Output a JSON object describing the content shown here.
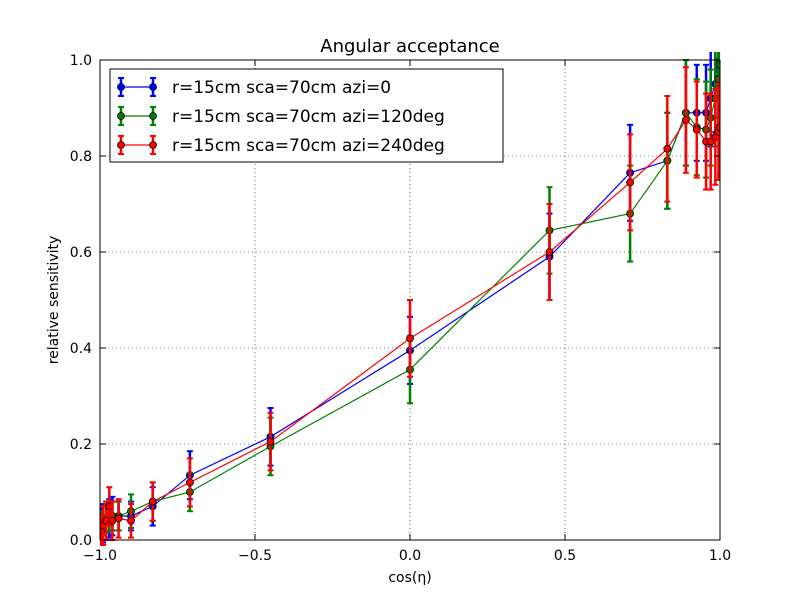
{
  "chart_data": {
    "type": "line",
    "title": "Angular acceptance",
    "xlabel": "cos(η)",
    "ylabel": "relative sensitivity",
    "xlim": [
      -1.0,
      1.0
    ],
    "ylim": [
      0.0,
      1.0
    ],
    "xticks": [
      -1.0,
      -0.5,
      0.0,
      0.5,
      1.0
    ],
    "xtick_labels": [
      "−1.0",
      "−0.5",
      "0.0",
      "0.5",
      "1.0"
    ],
    "yticks": [
      0.0,
      0.2,
      0.4,
      0.6,
      0.8,
      1.0
    ],
    "ytick_labels": [
      "0.0",
      "0.2",
      "0.4",
      "0.6",
      "0.8",
      "1.0"
    ],
    "grid": true,
    "legend_position": "top-left",
    "series": [
      {
        "name": "r=15cm sca=70cm azi=0",
        "color": "#0000ff",
        "x": [
          -1.0,
          -0.995,
          -0.99,
          -0.98,
          -0.97,
          -0.96,
          -0.94,
          -0.9,
          -0.83,
          -0.71,
          -0.45,
          0.0,
          0.45,
          0.71,
          0.83,
          0.89,
          0.925,
          0.955,
          0.97,
          0.985,
          0.995,
          1.0
        ],
        "y": [
          0.02,
          0.03,
          0.035,
          0.04,
          0.045,
          0.05,
          0.05,
          0.05,
          0.07,
          0.135,
          0.215,
          0.395,
          0.59,
          0.765,
          0.79,
          0.89,
          0.89,
          0.89,
          0.92,
          0.95,
          0.98,
          1.0
        ],
        "yerr": [
          0.03,
          0.04,
          0.04,
          0.04,
          0.04,
          0.04,
          0.03,
          0.03,
          0.04,
          0.05,
          0.06,
          0.07,
          0.09,
          0.1,
          0.1,
          0.11,
          0.1,
          0.1,
          0.1,
          0.1,
          0.1,
          0.1
        ]
      },
      {
        "name": "r=15cm sca=70cm azi=120deg",
        "color": "#008000",
        "x": [
          -1.0,
          -0.995,
          -0.99,
          -0.98,
          -0.97,
          -0.96,
          -0.94,
          -0.9,
          -0.83,
          -0.71,
          -0.45,
          0.0,
          0.45,
          0.71,
          0.83,
          0.89,
          0.925,
          0.955,
          0.97,
          0.985,
          0.995,
          1.0
        ],
        "y": [
          0.025,
          0.03,
          0.04,
          0.045,
          0.05,
          0.05,
          0.05,
          0.06,
          0.08,
          0.1,
          0.195,
          0.355,
          0.645,
          0.68,
          0.79,
          0.89,
          0.86,
          0.855,
          0.88,
          0.92,
          0.96,
          0.99
        ],
        "yerr": [
          0.03,
          0.03,
          0.03,
          0.03,
          0.03,
          0.03,
          0.03,
          0.035,
          0.04,
          0.04,
          0.06,
          0.07,
          0.09,
          0.1,
          0.1,
          0.11,
          0.1,
          0.1,
          0.1,
          0.1,
          0.1,
          0.1
        ]
      },
      {
        "name": "r=15cm sca=70cm azi=240deg",
        "color": "#ff0000",
        "x": [
          -1.0,
          -0.995,
          -0.99,
          -0.98,
          -0.97,
          -0.96,
          -0.94,
          -0.9,
          -0.83,
          -0.71,
          -0.45,
          0.0,
          0.45,
          0.71,
          0.83,
          0.89,
          0.925,
          0.955,
          0.97,
          0.985,
          0.995,
          1.0
        ],
        "y": [
          0.015,
          0.02,
          0.03,
          0.04,
          0.07,
          0.04,
          0.045,
          0.04,
          0.08,
          0.12,
          0.205,
          0.42,
          0.6,
          0.745,
          0.815,
          0.875,
          0.855,
          0.83,
          0.83,
          0.84,
          0.85,
          0.86
        ],
        "yerr": [
          0.03,
          0.03,
          0.04,
          0.04,
          0.04,
          0.04,
          0.04,
          0.035,
          0.04,
          0.05,
          0.06,
          0.08,
          0.1,
          0.1,
          0.11,
          0.11,
          0.1,
          0.1,
          0.1,
          0.1,
          0.1,
          0.1
        ]
      }
    ]
  }
}
